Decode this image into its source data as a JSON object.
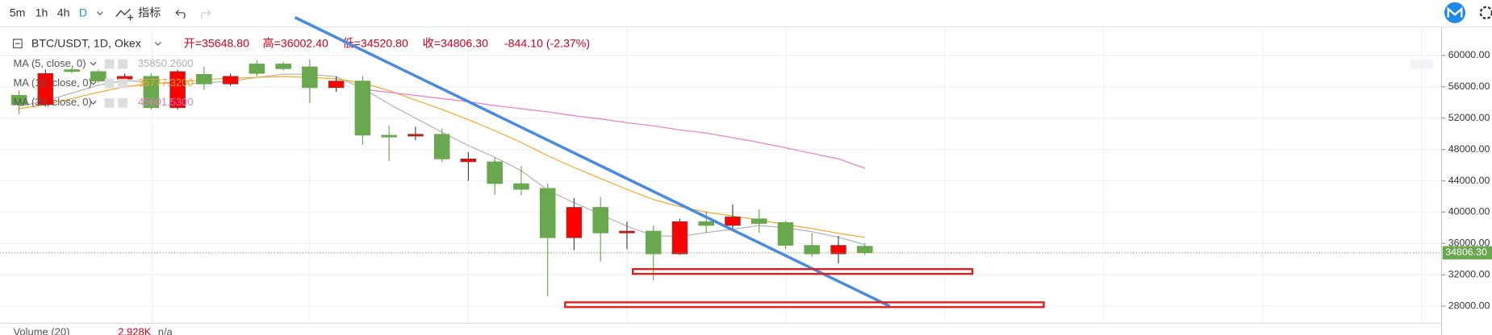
{
  "toolbar": {
    "intervals": [
      "5m",
      "1h",
      "4h",
      "D"
    ],
    "indicators": "指标"
  },
  "header": {
    "symbol": "BTC/USDT, 1D, Okex",
    "items": [
      "开=35648.80",
      "高=36002.40",
      "低=34520.80",
      "收=34806.30",
      "-844.10 (-2.37%)"
    ]
  },
  "chart_data": {
    "type": "candlestick",
    "categories": [
      null,
      null,
      null,
      null,
      null,
      null,
      null,
      null,
      null,
      null,
      null,
      null,
      null,
      null,
      null,
      null,
      null,
      null,
      null,
      null,
      null,
      null,
      null,
      null,
      null,
      null,
      null,
      null,
      null,
      null,
      null,
      null,
      null
    ],
    "open": [
      54910,
      53700,
      58180,
      57940,
      56970,
      57330,
      53330,
      57580,
      56360,
      58910,
      58910,
      58540,
      55880,
      56730,
      49820,
      49700,
      49940,
      46420,
      46420,
      43640,
      43030,
      36730,
      40610,
      37340,
      37580,
      34670,
      38790,
      38300,
      39150,
      38670,
      35760,
      34670,
      35648.8
    ],
    "high": [
      55520,
      58180,
      58400,
      58180,
      57700,
      57700,
      58180,
      58540,
      57700,
      59390,
      59150,
      59520,
      57330,
      57330,
      51030,
      50910,
      50670,
      47640,
      47030,
      45880,
      43640,
      41820,
      41940,
      38790,
      38300,
      39150,
      40120,
      40970,
      40360,
      38910,
      37330,
      36970,
      36002.4
    ],
    "low": [
      52490,
      53460,
      57700,
      56490,
      56730,
      53090,
      53090,
      55640,
      56120,
      57330,
      58060,
      53940,
      55330,
      48610,
      46510,
      49210,
      46420,
      44000,
      42180,
      42180,
      29220,
      35150,
      33700,
      35270,
      31270,
      34550,
      37340,
      37700,
      37340,
      35270,
      34300,
      33460,
      34520.8
    ],
    "close": [
      53700,
      57700,
      57940,
      56730,
      57330,
      53330,
      57940,
      56360,
      57330,
      57700,
      58300,
      55880,
      56730,
      49820,
      49580,
      49940,
      46790,
      46790,
      43640,
      42910,
      36730,
      40610,
      37340,
      37580,
      34670,
      38790,
      38300,
      39390,
      38550,
      35760,
      34670,
      35760,
      34806.3
    ],
    "up_color": "#ff0000",
    "down_color": "#6aa84f",
    "last_label": "34806.30",
    "series": [
      {
        "name": "MA (5, close, 0)",
        "color": "#b0b0b0",
        "last_label": "35850.2600",
        "values": [
          53500,
          54200,
          55200,
          56200,
          56800,
          56600,
          56300,
          56500,
          56700,
          57200,
          57600,
          57600,
          57300,
          55800,
          53800,
          52000,
          50200,
          48500,
          47000,
          45300,
          42800,
          41200,
          39700,
          38200,
          37000,
          36900,
          37400,
          37800,
          38300,
          38000,
          37500,
          36800,
          35850.26
        ]
      },
      {
        "name": "MA (10, close, 0)",
        "color": "#f5a623",
        "last_label": "36777.3200",
        "values": [
          53200,
          53700,
          54500,
          55300,
          56000,
          56400,
          56600,
          56900,
          57100,
          57200,
          57300,
          57200,
          57000,
          56500,
          55500,
          54300,
          53100,
          51800,
          50400,
          48900,
          47200,
          45700,
          44300,
          42900,
          41600,
          40700,
          40000,
          39500,
          39000,
          38400,
          37900,
          37300,
          36777.32
        ]
      },
      {
        "name": "MA (30, close, 0)",
        "color": "#e879c9",
        "last_label": "45601.5300",
        "values": [
          null,
          null,
          null,
          null,
          null,
          null,
          null,
          null,
          null,
          null,
          null,
          null,
          null,
          55700,
          55300,
          54900,
          54500,
          54100,
          53600,
          53200,
          52800,
          52300,
          51900,
          51400,
          51000,
          50500,
          50100,
          49500,
          48900,
          48200,
          47500,
          46800,
          45601.53
        ]
      }
    ],
    "drawings": [
      {
        "type": "trendline",
        "color": "#4a8ae0",
        "x": [
          10.44,
          32.94
        ],
        "y": [
          64850,
          28000
        ]
      },
      {
        "type": "rectangle",
        "color": "#e21b1b",
        "x": [
          23.22,
          36.07
        ],
        "y": [
          32730,
          32120
        ]
      },
      {
        "type": "rectangle",
        "color": "#e21b1b",
        "x": [
          20.66,
          38.77
        ],
        "y": [
          28490,
          27880
        ]
      }
    ],
    "xlim": [
      -0.72,
      53.82
    ],
    "ylim": [
      25820,
      63390
    ],
    "yticks": [
      {
        "value": 60000,
        "label": "60000.00"
      },
      {
        "value": 56000,
        "label": "56000.00"
      },
      {
        "value": 52000,
        "label": "52000.00"
      },
      {
        "value": 48000,
        "label": "48000.00"
      },
      {
        "value": 44000,
        "label": "44000.00"
      },
      {
        "value": 40000,
        "label": "40000.00"
      },
      {
        "value": 36000,
        "label": "36000.00"
      },
      {
        "value": 32000,
        "label": "32000.00"
      },
      {
        "value": 28000,
        "label": "28000.00"
      }
    ],
    "grid": true,
    "volume_legend": [
      "Volume (20)",
      "2.928K",
      "n/a"
    ]
  }
}
